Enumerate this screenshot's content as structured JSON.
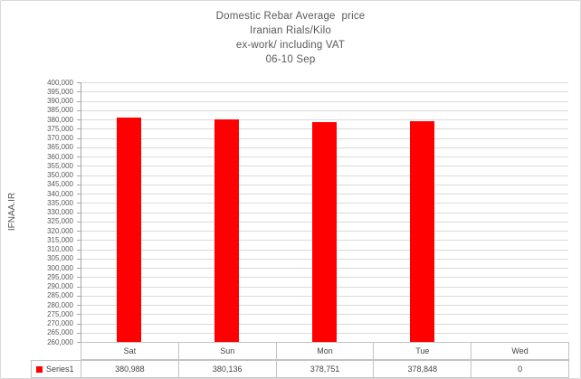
{
  "chart_data": {
    "type": "bar",
    "title_lines": [
      "Domestic Rebar Average  price",
      "Iranian Rials/Kilo",
      "ex-work/ including VAT",
      "06-10 Sep"
    ],
    "ylabel": "IFNAA.IR",
    "categories": [
      "Sat",
      "Sun",
      "Mon",
      "Tue",
      "Wed"
    ],
    "series": [
      {
        "name": "Series1",
        "values": [
          380988,
          380136,
          378751,
          378848,
          0
        ]
      }
    ],
    "value_labels": [
      "380,988",
      "380,136",
      "378,751",
      "378,848",
      "0"
    ],
    "ylim": [
      260000,
      400000
    ],
    "ytick_step": 5000,
    "ytick_label_example": "400,000",
    "grid": true,
    "legend_position": "data-table-left",
    "colors": {
      "bar": "#FF0000",
      "text": "#595959",
      "gridline": "#DADADA",
      "axis": "#A6A6A6",
      "table_border": "#C3C3C3",
      "chart_border": "#D9D9D9",
      "background": "#FFFFFF"
    }
  }
}
